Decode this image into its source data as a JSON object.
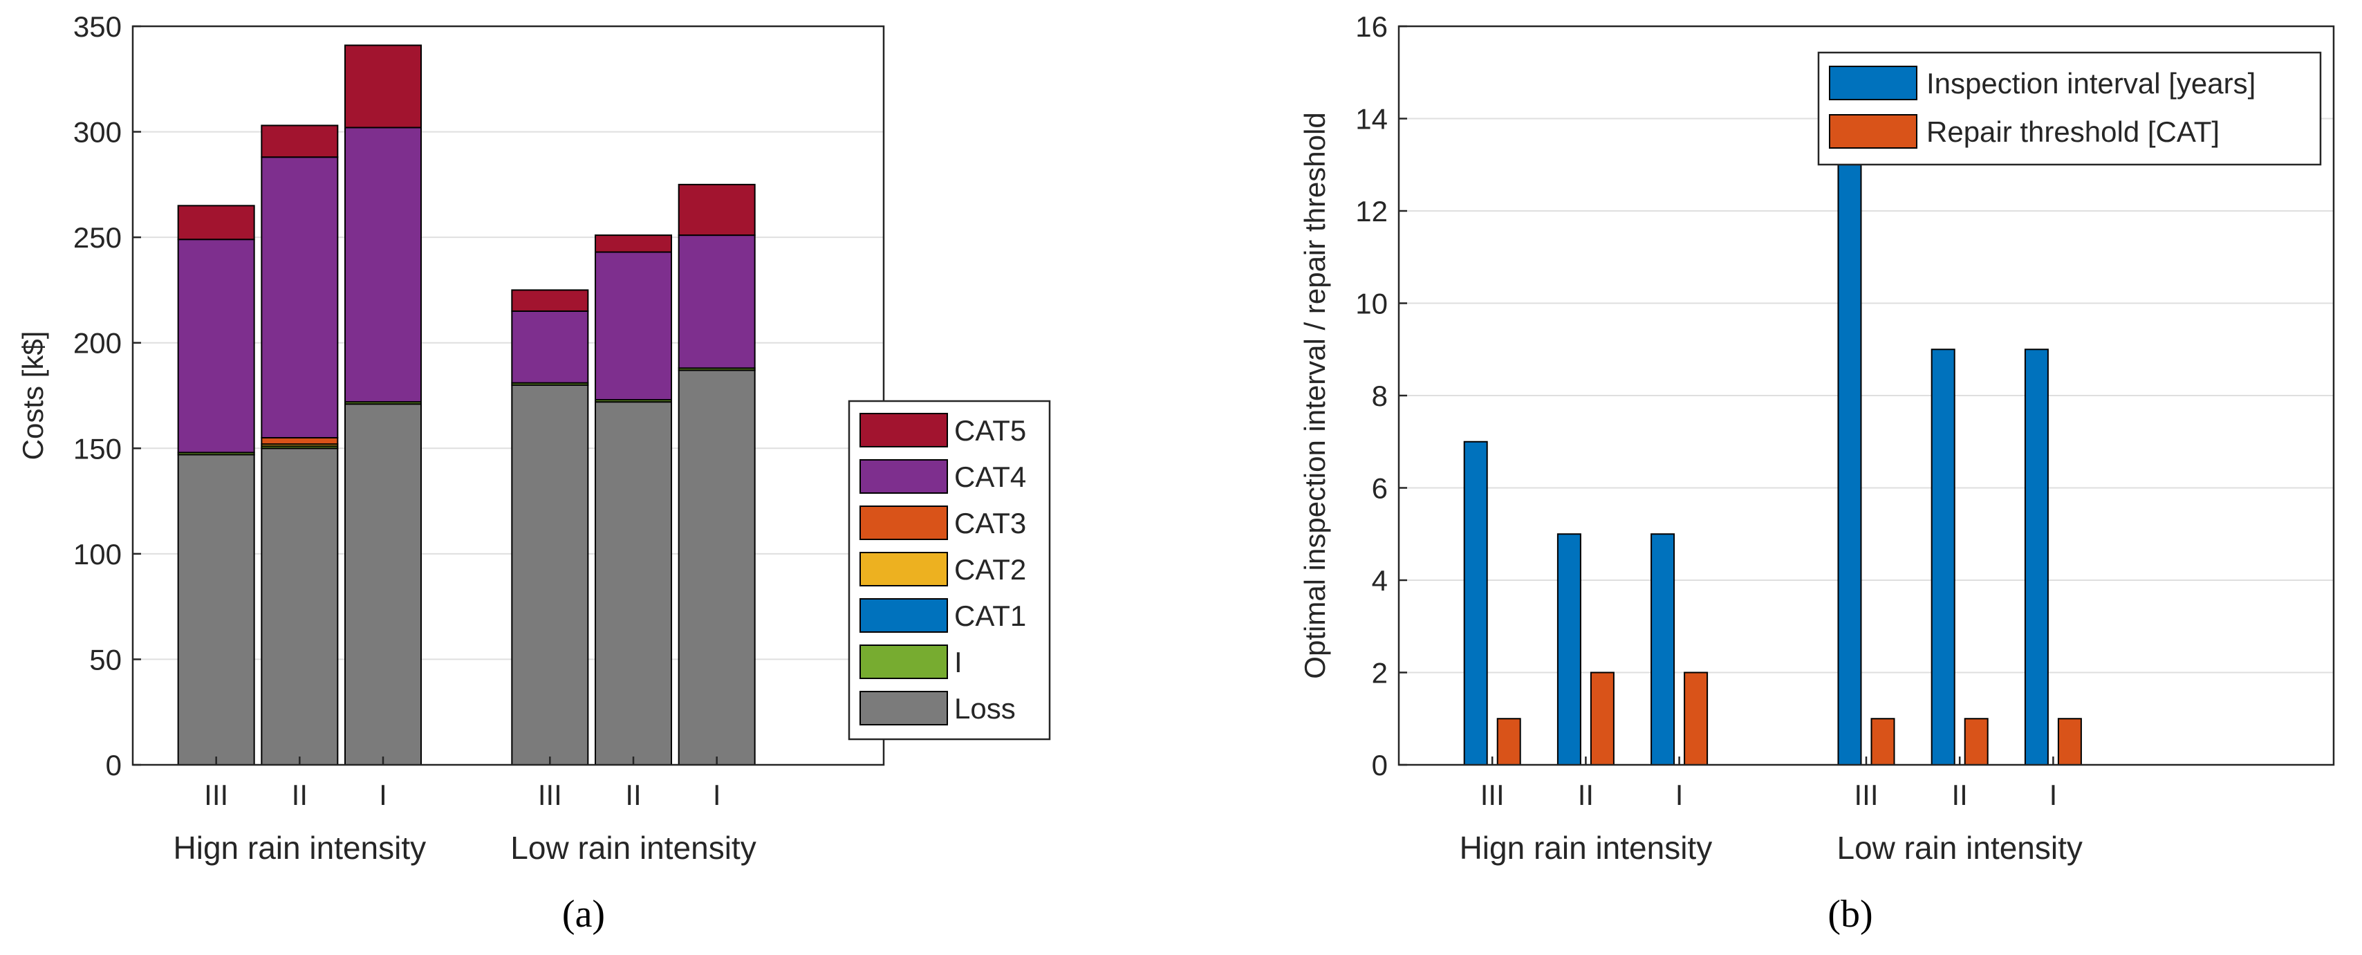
{
  "colors": {
    "Loss": "#7b7b7b",
    "I": "#77ac30",
    "CAT1": "#0072bd",
    "CAT2": "#edb120",
    "CAT3": "#d95319",
    "CAT4": "#7e2f8e",
    "CAT5": "#a2142f",
    "grid": "#dfdfdf",
    "axis": "#262626"
  },
  "chart_data": [
    {
      "type": "bar",
      "stacked": true,
      "panel_label": "(a)",
      "ylabel": "Costs [k$]",
      "ylim": [
        0,
        350
      ],
      "yticks": [
        0,
        50,
        100,
        150,
        200,
        250,
        300,
        350
      ],
      "grid": true,
      "legend_position": "bottom-right",
      "legend": [
        "CAT5",
        "CAT4",
        "CAT3",
        "CAT2",
        "CAT1",
        "I",
        "Loss"
      ],
      "x_positions": [
        1,
        2,
        3,
        5,
        6,
        7
      ],
      "xlim": [
        0,
        9
      ],
      "categories": [
        "III",
        "II",
        "I",
        "III",
        "II",
        "I"
      ],
      "groups": [
        {
          "label": "Hign rain intensity",
          "center": 2
        },
        {
          "label": "Low rain intensity",
          "center": 6
        }
      ],
      "series": [
        {
          "name": "Loss",
          "values": [
            147,
            150,
            171,
            180,
            172,
            187
          ]
        },
        {
          "name": "I",
          "values": [
            1,
            1,
            1,
            1,
            1,
            1
          ]
        },
        {
          "name": "CAT1",
          "values": [
            0,
            0,
            0,
            0,
            0,
            0
          ]
        },
        {
          "name": "CAT2",
          "values": [
            0,
            1,
            0,
            0,
            0,
            0
          ]
        },
        {
          "name": "CAT3",
          "values": [
            0,
            3,
            0,
            0,
            0,
            0
          ]
        },
        {
          "name": "CAT4",
          "values": [
            101,
            133,
            130,
            34,
            70,
            63
          ]
        },
        {
          "name": "CAT5",
          "values": [
            16,
            15,
            39,
            10,
            8,
            24
          ]
        }
      ]
    },
    {
      "type": "bar",
      "panel_label": "(b)",
      "ylabel": "Optimal inspection interval / repair threshold",
      "ylim": [
        0,
        16
      ],
      "yticks": [
        0,
        2,
        4,
        6,
        8,
        10,
        12,
        14,
        16
      ],
      "grid": true,
      "legend_position": "top-right",
      "legend": [
        "Inspection interval [years]",
        "Repair threshold [CAT]"
      ],
      "x_positions": [
        1,
        2,
        3,
        5,
        6,
        7
      ],
      "xlim": [
        0,
        10
      ],
      "categories": [
        "III",
        "II",
        "I",
        "III",
        "II",
        "I"
      ],
      "groups": [
        {
          "label": "Hign rain intensity",
          "center": 2
        },
        {
          "label": "Low rain intensity",
          "center": 6
        }
      ],
      "series": [
        {
          "name": "Inspection interval [years]",
          "values": [
            7,
            5,
            5,
            13,
            9,
            9
          ]
        },
        {
          "name": "Repair threshold [CAT]",
          "values": [
            1,
            2,
            2,
            1,
            1,
            1
          ]
        }
      ]
    }
  ]
}
